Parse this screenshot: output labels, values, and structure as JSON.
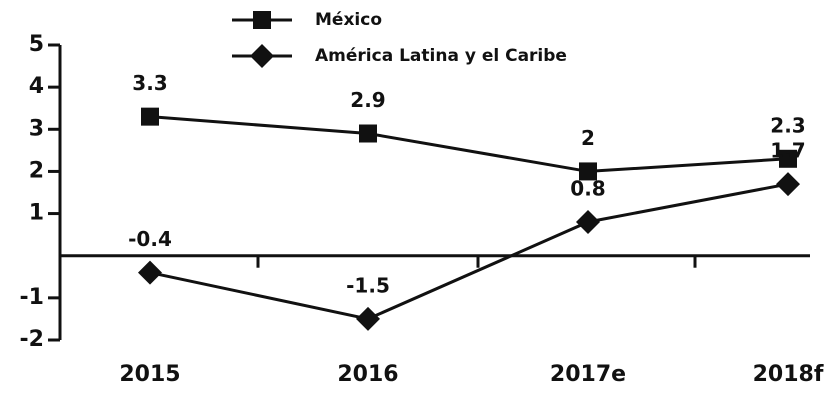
{
  "chart_data": {
    "type": "line",
    "categories": [
      "2015",
      "2016",
      "2017e",
      "2018f"
    ],
    "series": [
      {
        "name": "México",
        "color": "#111111",
        "marker": "square",
        "values": [
          3.3,
          2.9,
          2,
          2.3
        ]
      },
      {
        "name": "América Latina y el Caribe",
        "color": "#111111",
        "marker": "diamond",
        "values": [
          -0.4,
          -1.5,
          0.8,
          1.7
        ]
      }
    ],
    "ylim": [
      -2,
      5
    ],
    "yticks": [
      -2,
      -1,
      1,
      2,
      3,
      4,
      5
    ],
    "grid": false
  }
}
